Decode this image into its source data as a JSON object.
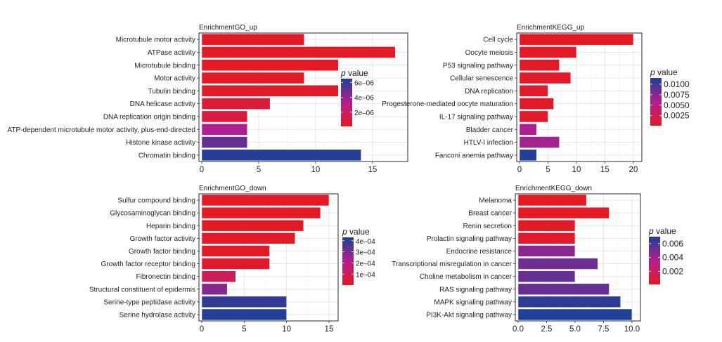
{
  "chart_data": [
    {
      "id": "go_up",
      "type": "bar",
      "orientation": "horizontal",
      "title": "EnrichmentGO_up",
      "xlabel": "",
      "ylabel": "",
      "xlim": [
        0,
        17.85
      ],
      "xticks": [
        0,
        5,
        10,
        15
      ],
      "xtick_labels": [
        "0",
        "5",
        "10",
        "15"
      ],
      "grid": true,
      "categories": [
        "Microtubule motor activity",
        "ATPase activity",
        "Microtubule binding",
        "Motor activity",
        "Tubulin binding",
        "DNA helicase activity",
        "DNA replication origin binding",
        "ATP-dependent microtubule motor activity, plus-end-directed",
        "Histone kinase activity",
        "Chromatin binding"
      ],
      "values": [
        9,
        17,
        12,
        9,
        12,
        6,
        4,
        4,
        4,
        14
      ],
      "pvalues": [
        2e-07,
        2e-07,
        2e-07,
        2e-07,
        3e-07,
        8e-07,
        1e-06,
        3.5e-06,
        5e-06,
        6.3e-06
      ],
      "legend": {
        "title_italic": "p",
        "title_rest": " value",
        "range": [
          1e-07,
          6.5e-06
        ],
        "ticks": [
          2e-06,
          4e-06,
          6e-06
        ],
        "tick_labels": [
          "2e–06",
          "4e–06",
          "6e–06"
        ],
        "position": "right"
      }
    },
    {
      "id": "kegg_up",
      "type": "bar",
      "orientation": "horizontal",
      "title": "EnrichmentKEGG_up",
      "xlabel": "",
      "ylabel": "",
      "xlim": [
        0,
        21
      ],
      "xticks": [
        0,
        5,
        10,
        15,
        20
      ],
      "xtick_labels": [
        "0",
        "5",
        "10",
        "15",
        "20"
      ],
      "grid": true,
      "categories": [
        "Cell cycle",
        "Oocyte meiosis",
        "P53 signaling pathway",
        "Cellular senescence",
        "DNA replication",
        "Progesterone-mediated oocyte maturation",
        "IL-17 signaling pathway",
        "Bladder cancer",
        "HTLV-I infection",
        "Fanconi anemia pathway"
      ],
      "values": [
        20,
        10,
        7,
        9,
        5,
        6,
        5,
        3,
        7,
        3
      ],
      "pvalues": [
        0.0002,
        0.0003,
        0.0003,
        0.0004,
        0.0005,
        0.0005,
        0.0006,
        0.0062,
        0.0065,
        0.0112
      ],
      "legend": {
        "title_italic": "p",
        "title_rest": " value",
        "range": [
          0.0001,
          0.0115
        ],
        "ticks": [
          0.0025,
          0.005,
          0.0075,
          0.01
        ],
        "tick_labels": [
          "0.0025",
          "0.0050",
          "0.0075",
          "0.0100"
        ],
        "position": "right"
      }
    },
    {
      "id": "go_down",
      "type": "bar",
      "orientation": "horizontal",
      "title": "EnrichmentGO_down",
      "xlabel": "",
      "ylabel": "",
      "xlim": [
        0,
        15.75
      ],
      "xticks": [
        0,
        5,
        10,
        15
      ],
      "xtick_labels": [
        "0",
        "5",
        "10",
        "15"
      ],
      "grid": true,
      "categories": [
        "Sulfur compound binding",
        "Glycosaminoglycan binding",
        "Heparin binding",
        "Growth factor activity",
        "Growth factor binding",
        "Growth factor receptor binding",
        "Fibronectin binding",
        "Structural constituent of epidermis",
        "Serine-type peptidase activity",
        "Serine hydrolase activity"
      ],
      "values": [
        15,
        14,
        12,
        11,
        8,
        8,
        4,
        3,
        10,
        10
      ],
      "pvalues": [
        5e-06,
        5e-06,
        8e-06,
        1e-05,
        1.2e-05,
        2e-05,
        0.00011,
        0.00028,
        0.0004,
        0.00042
      ],
      "legend": {
        "title_italic": "p",
        "title_rest": " value",
        "range": [
          1e-06,
          0.00043
        ],
        "ticks": [
          0.0001,
          0.0002,
          0.0003,
          0.0004
        ],
        "tick_labels": [
          "1e–04",
          "2e–04",
          "3e–04",
          "4e–04"
        ],
        "position": "right"
      }
    },
    {
      "id": "kegg_down",
      "type": "bar",
      "orientation": "horizontal",
      "title": "EnrichmentKEGG_down",
      "xlabel": "",
      "ylabel": "",
      "xlim": [
        0,
        10.5
      ],
      "xticks": [
        0,
        2.5,
        5,
        7.5,
        10
      ],
      "xtick_labels": [
        "0.0",
        "2.5",
        "5.0",
        "7.5",
        "10.0"
      ],
      "grid": true,
      "categories": [
        "Melanoma",
        "Breast cancer",
        "Renin secretion",
        "Prolactin signaling pathway",
        "Endocrine resistance",
        "Transcriptional misregulation in cancer",
        "Choline metabolism in cancer",
        "RAS signaling pathway",
        "MAPK signaling pathway",
        "PI3K-Akt signaling pathway"
      ],
      "values": [
        6,
        8,
        5,
        5,
        5,
        7,
        5,
        8,
        9,
        10
      ],
      "pvalues": [
        0.0001,
        0.0002,
        0.0003,
        0.0004,
        0.0045,
        0.0052,
        0.0054,
        0.0053,
        0.0066,
        0.0069
      ],
      "legend": {
        "title_italic": "p",
        "title_rest": " value",
        "range": [
          0.0001,
          0.007
        ],
        "ticks": [
          0.002,
          0.004,
          0.006
        ],
        "tick_labels": [
          "0.002",
          "0.004",
          "0.006"
        ],
        "position": "right"
      }
    }
  ],
  "colors": {
    "low_pvalue": "#e41a23",
    "mid_pvalue": "#b51e8e",
    "high_pvalue": "#1d4096"
  }
}
